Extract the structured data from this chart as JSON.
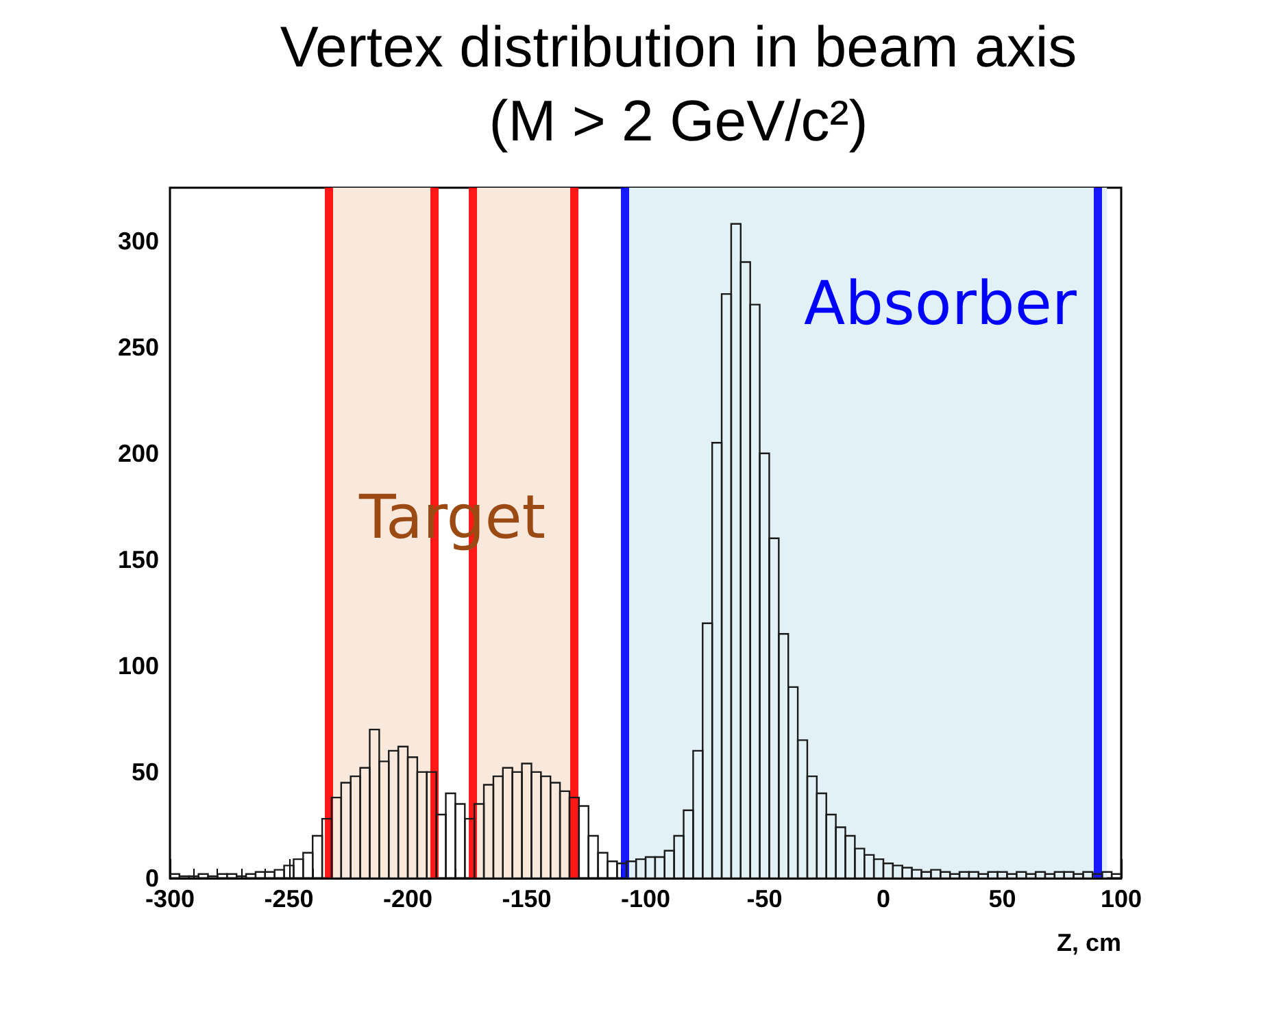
{
  "chart_data": {
    "type": "histogram",
    "title": "Vertex distribution in beam axis",
    "subtitle": "(M > 2 GeV/c²)",
    "xlabel": "Z, cm",
    "bins": [
      -300,
      -296,
      -292,
      -288,
      -284,
      -280,
      -276,
      -272,
      -268,
      -264,
      -260,
      -256,
      -252,
      -248,
      -244,
      -240,
      -236,
      -232,
      -228,
      -224,
      -220,
      -216,
      -212,
      -208,
      -204,
      -200,
      -196,
      -192,
      -188,
      -184,
      -180,
      -176,
      -172,
      -168,
      -164,
      -160,
      -156,
      -152,
      -148,
      -144,
      -140,
      -136,
      -132,
      -128,
      -124,
      -120,
      -116,
      -112,
      -108,
      -104,
      -100,
      -96,
      -92,
      -88,
      -84,
      -80,
      -76,
      -72,
      -68,
      -64,
      -60,
      -56,
      -52,
      -48,
      -44,
      -40,
      -36,
      -32,
      -28,
      -24,
      -20,
      -16,
      -12,
      -8,
      -4,
      0,
      4,
      8,
      12,
      16,
      20,
      24,
      28,
      32,
      36,
      40,
      44,
      48,
      52,
      56,
      60,
      64,
      68,
      72,
      76,
      80,
      84,
      88,
      92,
      96,
      100
    ],
    "values": [
      2,
      1,
      1,
      2,
      1,
      2,
      2,
      1,
      2,
      3,
      3,
      4,
      6,
      9,
      12,
      20,
      28,
      38,
      45,
      48,
      52,
      70,
      55,
      60,
      62,
      57,
      50,
      50,
      30,
      40,
      35,
      28,
      35,
      44,
      48,
      52,
      50,
      54,
      50,
      48,
      45,
      41,
      38,
      34,
      20,
      12,
      8,
      7,
      8,
      9,
      10,
      10,
      13,
      20,
      32,
      60,
      120,
      205,
      275,
      308,
      290,
      270,
      200,
      160,
      115,
      90,
      65,
      48,
      40,
      30,
      24,
      20,
      14,
      11,
      9,
      7,
      6,
      5,
      4,
      3,
      4,
      3,
      2,
      3,
      3,
      2,
      3,
      3,
      2,
      3,
      2,
      3,
      2,
      3,
      3,
      2,
      3,
      2,
      3,
      2
    ],
    "color": "#1a1a1a",
    "xlim": [
      -300,
      100
    ],
    "xticks": [
      -300,
      -250,
      -200,
      -150,
      -100,
      -50,
      0,
      50,
      100
    ],
    "ylim": [
      0,
      325
    ],
    "yticks": [
      0,
      50,
      100,
      150,
      200,
      250,
      300
    ],
    "grid": false,
    "bands": [
      {
        "axis": "x",
        "from": -233,
        "to": -189,
        "color": "#f9e9dc"
      },
      {
        "axis": "x",
        "from": -171,
        "to": -129,
        "color": "#f9e9dc"
      },
      {
        "axis": "x",
        "from": -109,
        "to": 94,
        "color": "#e2f1f5"
      }
    ],
    "ref_lines": [
      {
        "axis": "x",
        "value": -233,
        "color": "#ff0000"
      },
      {
        "axis": "x",
        "value": -189,
        "color": "#ff0000"
      },
      {
        "axis": "x",
        "value": -173,
        "color": "#ff0000"
      },
      {
        "axis": "x",
        "value": -130,
        "color": "#ff0000"
      },
      {
        "axis": "x",
        "value": -109,
        "color": "#0000ff"
      },
      {
        "axis": "x",
        "value": 90,
        "color": "#0000ff"
      }
    ],
    "annotations": [
      "Target",
      "Absorber"
    ]
  }
}
